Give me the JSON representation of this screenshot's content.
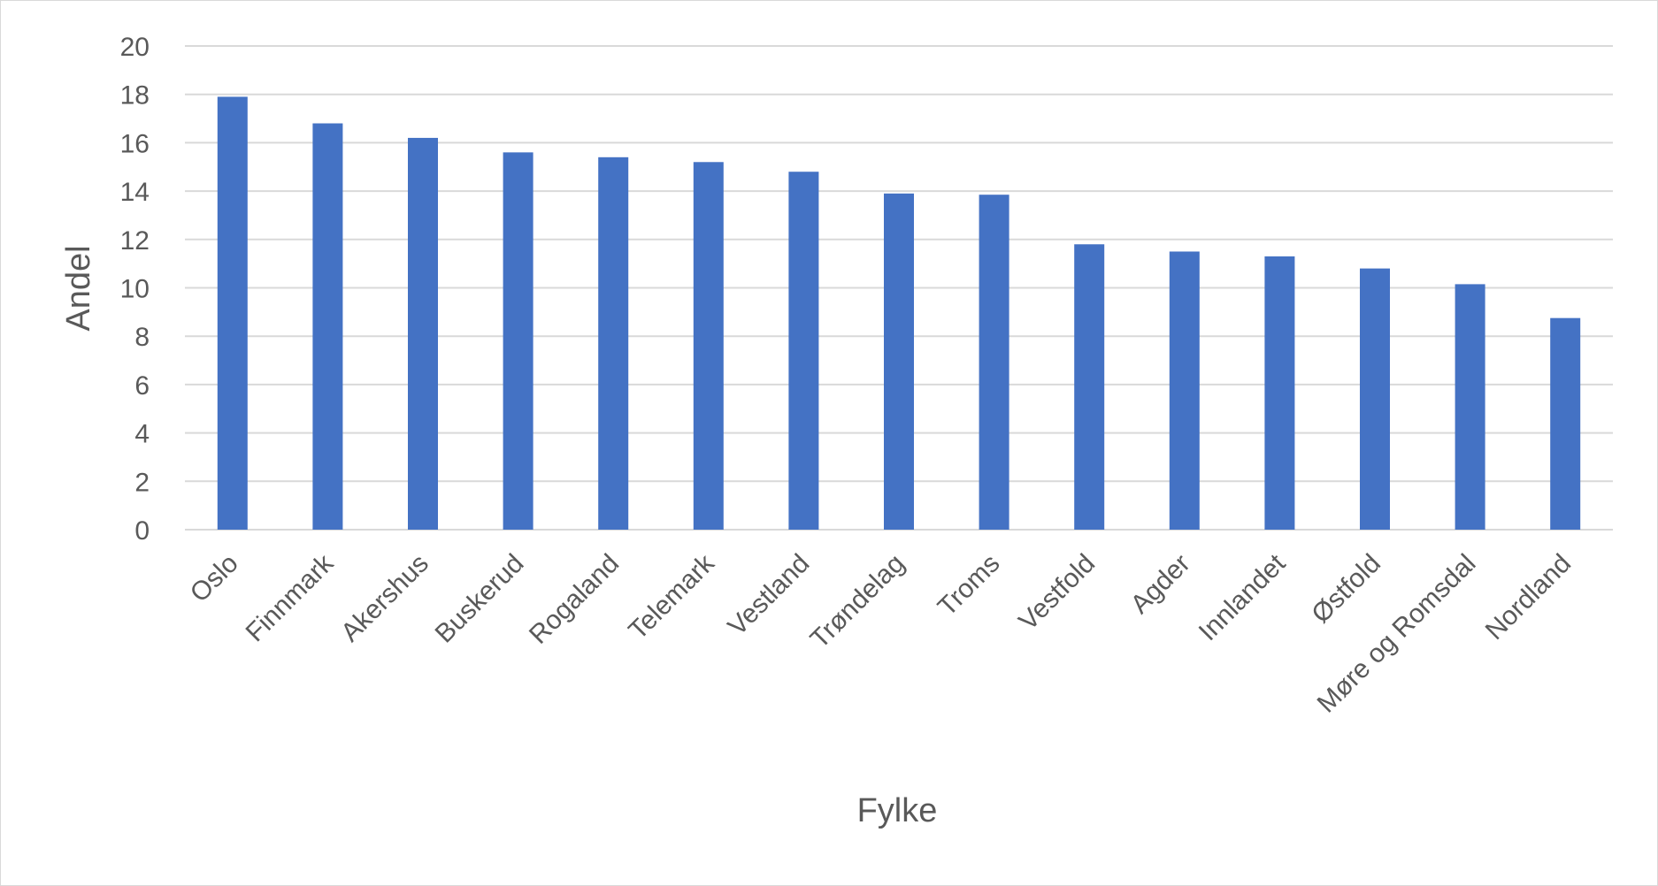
{
  "chart_data": {
    "type": "bar",
    "title": "",
    "xlabel": "Fylke",
    "ylabel": "Andel",
    "categories": [
      "Oslo",
      "Finnmark",
      "Akershus",
      "Buskerud",
      "Rogaland",
      "Telemark",
      "Vestland",
      "Trøndelag",
      "Troms",
      "Vestfold",
      "Agder",
      "Innlandet",
      "Østfold",
      "Møre og Romsdal",
      "Nordland"
    ],
    "values": [
      17.9,
      16.8,
      16.2,
      15.6,
      15.4,
      15.2,
      14.8,
      13.9,
      13.85,
      11.8,
      11.5,
      11.3,
      10.8,
      10.15,
      8.75
    ],
    "ylim": [
      0,
      20
    ],
    "yticks": [
      0,
      2,
      4,
      6,
      8,
      10,
      12,
      14,
      16,
      18,
      20
    ],
    "grid": true,
    "legend": "none",
    "colors": {
      "bar": "#4472c4",
      "grid": "#d9d9d9",
      "text": "#595959"
    }
  }
}
